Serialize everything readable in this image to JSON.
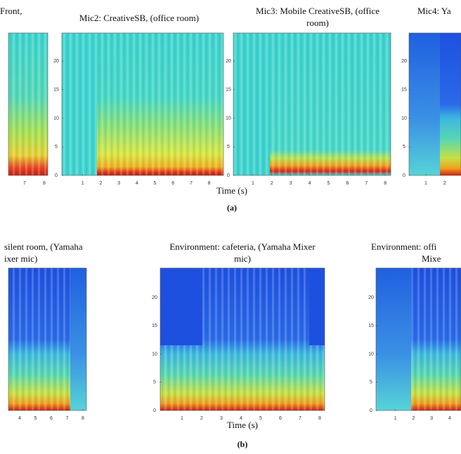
{
  "figure": {
    "row_a": {
      "panels": [
        {
          "title": [
            "Front,"
          ],
          "xticks": [
            7,
            8
          ],
          "yticks": []
        },
        {
          "title": [
            "Mic2: CreativeSB, (office room)"
          ],
          "xticks": [
            1,
            2,
            3,
            4,
            5,
            6,
            7,
            8
          ],
          "yticks": [
            0,
            5,
            10,
            15,
            20
          ]
        },
        {
          "title": [
            "Mic3: Mobile CreativeSB, (office",
            "room)"
          ],
          "xticks": [
            1,
            2,
            3,
            4,
            5,
            6,
            7,
            8
          ],
          "yticks": [
            0,
            5,
            10,
            15,
            20
          ]
        },
        {
          "title": [
            "Mic4: Ya"
          ],
          "xticks": [
            1,
            2
          ],
          "yticks": [
            0,
            5,
            10,
            15,
            20
          ]
        }
      ],
      "x_label": "Time (s)",
      "caption": "(a)"
    },
    "row_b": {
      "panels": [
        {
          "title": [
            "silent room, (Yamaha",
            "ixer mic)"
          ],
          "xticks": [
            4,
            5,
            6,
            7,
            8
          ],
          "yticks": []
        },
        {
          "title": [
            "Environment: cafeteria, (Yamaha Mixer",
            "mic)"
          ],
          "xticks": [
            1,
            2,
            3,
            4,
            5,
            6,
            7,
            8
          ],
          "yticks": [
            0,
            5,
            10,
            15,
            20
          ]
        },
        {
          "title": [
            "Environment: offi",
            "Mixe"
          ],
          "xticks": [
            1,
            2,
            3,
            4
          ],
          "yticks": [
            0,
            5,
            10,
            15,
            20
          ]
        }
      ],
      "x_label": "Time (s)",
      "caption": "(b)"
    }
  }
}
